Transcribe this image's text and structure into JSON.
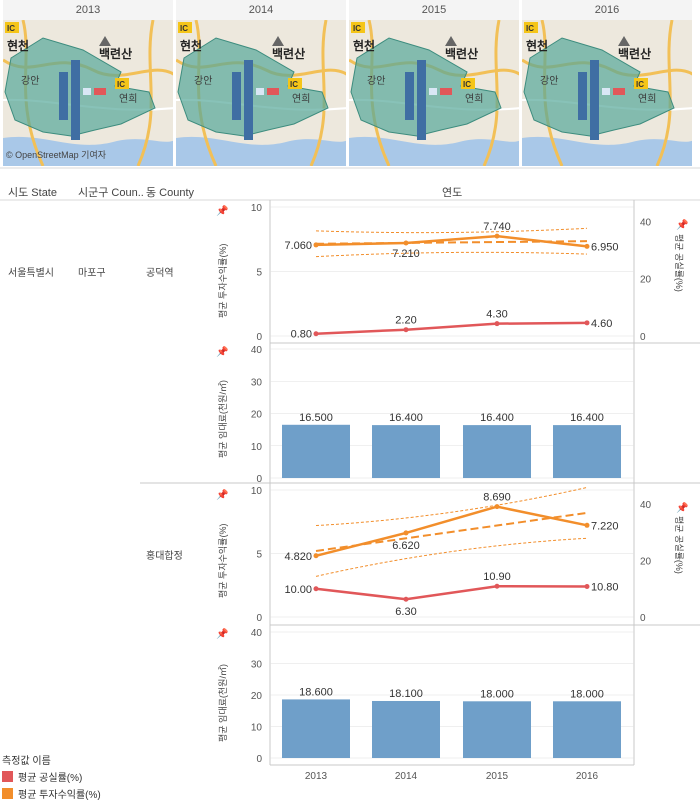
{
  "maps": {
    "years": [
      "2013",
      "2014",
      "2015",
      "2016"
    ],
    "labels": {
      "ic": "IC",
      "hyeoncheon": "현천",
      "baengnyeonsan": "백련산",
      "gangam": "강안",
      "yeonhui": "연희"
    },
    "credit": "© OpenStreetMap 기여자"
  },
  "headers": {
    "state": "시도 State",
    "sigungu": "시군구 Coun..",
    "county": "동 County",
    "year": "연도"
  },
  "rows": {
    "state": "서울특별시",
    "sigungu": "마포구",
    "county1": "공덕역",
    "county2": "홍대합정"
  },
  "axis_titles": {
    "investment": "평균 투자수익률(%)",
    "vacancy": "평균 공실률(%)",
    "rent": "평균 임대료(천원/㎡)"
  },
  "legend": {
    "title": "측정값 이름",
    "vacancy": "평균 공실률(%)",
    "investment": "평균 투자수익률(%)"
  },
  "colors": {
    "orange": "#f28e2b",
    "red": "#e15759",
    "bar": "#6f9fc9",
    "grid": "#e0e0e0"
  },
  "chart_data": [
    {
      "type": "line",
      "title": "공덕역 - 평균 투자수익률(%) / 평균 공실률(%)",
      "x": [
        "2013",
        "2014",
        "2015",
        "2016"
      ],
      "series": [
        {
          "name": "평균 투자수익률(%)",
          "axis": "left",
          "values": [
            7.06,
            7.21,
            7.74,
            6.95
          ],
          "labels": [
            "7.060",
            "7.210",
            "7.740",
            "6.950"
          ]
        },
        {
          "name": "평균 공실률(%)",
          "axis": "right",
          "values": [
            0.8,
            2.2,
            4.3,
            4.6
          ],
          "labels": [
            "0.80",
            "2.20",
            "4.30",
            "4.60"
          ]
        }
      ],
      "ylim_left": [
        0,
        10
      ],
      "yticks_left": [
        0,
        5,
        10
      ],
      "ylim_right": [
        0,
        45
      ],
      "yticks_right": [
        0,
        20,
        40
      ],
      "trend": {
        "series": "평균 투자수익률(%)",
        "start": 7.15,
        "end": 7.35,
        "band_width": 1.0
      }
    },
    {
      "type": "bar",
      "title": "공덕역 - 평균 임대료(천원/㎡)",
      "categories": [
        "2013",
        "2014",
        "2015",
        "2016"
      ],
      "values": [
        16.5,
        16.4,
        16.4,
        16.4
      ],
      "labels": [
        "16.500",
        "16.400",
        "16.400",
        "16.400"
      ],
      "ylim": [
        0,
        40
      ],
      "yticks": [
        0,
        10,
        20,
        30,
        40
      ]
    },
    {
      "type": "line",
      "title": "홍대합정 - 평균 투자수익률(%) / 평균 공실률(%)",
      "x": [
        "2013",
        "2014",
        "2015",
        "2016"
      ],
      "series": [
        {
          "name": "평균 투자수익률(%)",
          "axis": "left",
          "values": [
            4.82,
            6.62,
            8.69,
            7.22
          ],
          "labels": [
            "4.820",
            "6.620",
            "8.690",
            "7.220"
          ]
        },
        {
          "name": "평균 공실률(%)",
          "axis": "right",
          "values": [
            10.0,
            6.3,
            10.9,
            10.8
          ],
          "labels": [
            "10.00",
            "6.30",
            "10.90",
            "10.80"
          ]
        }
      ],
      "ylim_left": [
        0,
        10
      ],
      "yticks_left": [
        0,
        5,
        10
      ],
      "ylim_right": [
        0,
        45
      ],
      "yticks_right": [
        0,
        20,
        40
      ],
      "trend": {
        "series": "평균 투자수익률(%)",
        "start": 5.2,
        "end": 8.2,
        "band_width": 2.0
      }
    },
    {
      "type": "bar",
      "title": "홍대합정 - 평균 임대료(천원/㎡)",
      "categories": [
        "2013",
        "2014",
        "2015",
        "2016"
      ],
      "values": [
        18.6,
        18.1,
        18.0,
        18.0
      ],
      "labels": [
        "18.600",
        "18.100",
        "18.000",
        "18.000"
      ],
      "ylim": [
        0,
        40
      ],
      "yticks": [
        0,
        10,
        20,
        30,
        40
      ]
    }
  ]
}
